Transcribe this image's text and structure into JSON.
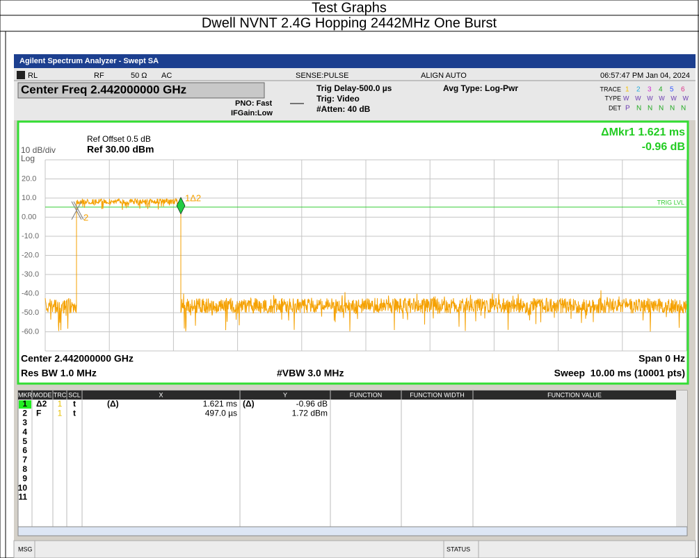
{
  "document": {
    "title": "Test Graphs",
    "subtitle": "Dwell NVNT 2.4G Hopping 2442MHz One Burst"
  },
  "window": {
    "title": "Agilent Spectrum Analyzer - Swept SA"
  },
  "status": {
    "rl": "RL",
    "rf": "RF",
    "impedance": "50 Ω",
    "coupling": "AC",
    "sense": "SENSE:PULSE",
    "align": "ALIGN AUTO",
    "datetime": "06:57:47 PM Jan 04, 2024",
    "center_freq": "Center Freq 2.442000000 GHz",
    "pno": "PNO: Fast",
    "ifgain": "IFGain:Low",
    "trig_delay": "Trig Delay-500.0 µs",
    "trig": "Trig: Video",
    "atten": "#Atten: 40 dB",
    "avg_type": "Avg Type: Log-Pwr",
    "trace_label": "TRACE",
    "trace_nums": [
      "1",
      "2",
      "3",
      "4",
      "5",
      "6"
    ],
    "type_label": "TYPE",
    "type_value": "WWWWWW",
    "det_label": "DET",
    "det_values": [
      "P",
      "N",
      "N",
      "N",
      "N",
      "N"
    ]
  },
  "display": {
    "ref_offset": "Ref Offset 0.5 dB",
    "ref": "Ref 30.00 dBm",
    "scale": "10 dB/div",
    "scale_type": "Log",
    "marker_readout": "ΔMkr1 1.621 ms",
    "marker_value": "-0.96 dB",
    "y_labels": [
      "20.0",
      "10.0",
      "0.00",
      "-10.0",
      "-20.0",
      "-30.0",
      "-40.0",
      "-50.0",
      "-60.0"
    ],
    "trig_lvl": "TRIG LVL",
    "marker1_label": "1Δ2",
    "marker2_label": "2",
    "center": "Center 2.442000000 GHz",
    "span": "Span 0 Hz",
    "res_bw": "Res BW 1.0 MHz",
    "vbw": "#VBW 3.0 MHz",
    "sweep": "Sweep  10.00 ms (10001 pts)"
  },
  "marker_table": {
    "headers": [
      "MKR",
      "MODE",
      "TRC",
      "SCL",
      "X",
      "Y",
      "FUNCTION",
      "FUNCTION WIDTH",
      "FUNCTION VALUE"
    ],
    "rows": [
      {
        "mkr": "1",
        "mode": "Δ2",
        "trc": "1",
        "scl": "t",
        "x_ref": "(Δ)",
        "x": "1.621 ms",
        "y_ref": "(Δ)",
        "y": "-0.96 dB"
      },
      {
        "mkr": "2",
        "mode": "F",
        "trc": "1",
        "scl": "t",
        "x": "497.0 µs",
        "y": "1.72 dBm"
      },
      {
        "mkr": "3"
      },
      {
        "mkr": "4"
      },
      {
        "mkr": "5"
      },
      {
        "mkr": "6"
      },
      {
        "mkr": "7"
      },
      {
        "mkr": "8"
      },
      {
        "mkr": "9"
      },
      {
        "mkr": "10"
      },
      {
        "mkr": "11"
      }
    ]
  },
  "footer": {
    "msg": "MSG",
    "status": "STATUS"
  }
}
